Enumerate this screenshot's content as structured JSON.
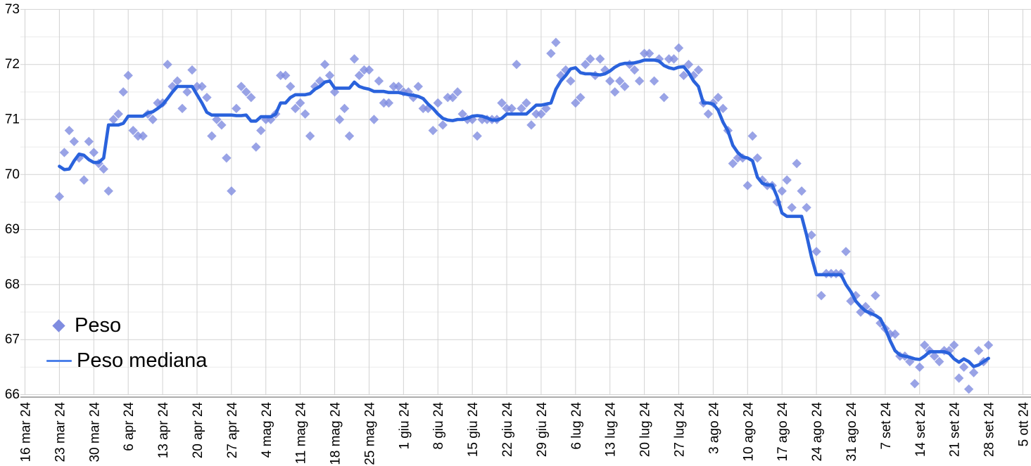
{
  "chart_data": {
    "type": "scatter",
    "title": "",
    "xlabel": "",
    "ylabel": "",
    "ylim": [
      66,
      73
    ],
    "y_ticks": [
      66,
      67,
      68,
      69,
      70,
      71,
      72,
      73
    ],
    "y_minor_tick_step": 0.5,
    "grid": true,
    "legend_position": "inside-bottom-left",
    "x_axis": {
      "start_date": "2024-03-16",
      "tick_interval_days": 7,
      "tick_labels": [
        "16 mar 24",
        "23 mar 24",
        "30 mar 24",
        "6 apr 24",
        "13 apr 24",
        "20 apr 24",
        "27 apr 24",
        "4 mag 24",
        "11 mag 24",
        "18 mag 24",
        "25 mag 24",
        "1 giu 24",
        "8 giu 24",
        "15 giu 24",
        "22 giu 24",
        "29 giu 24",
        "6 lug 24",
        "13 lug 24",
        "20 lug 24",
        "27 lug 24",
        "3 ago 24",
        "10 ago 24",
        "17 ago 24",
        "24 ago 24",
        "31 ago 24",
        "7 set 24",
        "14 set 24",
        "21 set 24",
        "28 set 24",
        "5 ott 24"
      ]
    },
    "series": [
      {
        "name": "Peso",
        "kind": "scatter",
        "marker": "diamond",
        "color": "#7F8CE0",
        "start_date": "2024-03-23",
        "frequency": "daily",
        "values": [
          69.6,
          70.4,
          70.8,
          70.6,
          70.3,
          69.9,
          70.6,
          70.4,
          70.2,
          70.1,
          69.7,
          71.0,
          71.1,
          71.5,
          71.8,
          70.8,
          70.7,
          70.7,
          71.1,
          71.0,
          71.3,
          71.3,
          72.0,
          71.6,
          71.7,
          71.2,
          71.5,
          71.9,
          71.6,
          71.6,
          71.4,
          70.7,
          71.0,
          70.9,
          70.3,
          69.7,
          71.2,
          71.6,
          71.5,
          71.4,
          70.5,
          70.8,
          71.0,
          71.0,
          71.1,
          71.8,
          71.8,
          71.6,
          71.2,
          71.3,
          71.1,
          70.7,
          71.6,
          71.7,
          72.0,
          71.8,
          71.5,
          71.0,
          71.2,
          70.7,
          72.1,
          71.8,
          71.9,
          71.9,
          71.0,
          71.7,
          71.3,
          71.3,
          71.6,
          71.6,
          71.5,
          71.5,
          71.4,
          71.6,
          71.2,
          71.2,
          70.8,
          71.3,
          70.9,
          71.4,
          71.4,
          71.5,
          71.1,
          71.0,
          71.0,
          70.7,
          71.0,
          71.0,
          71.0,
          71.0,
          71.3,
          71.2,
          71.2,
          72.0,
          71.2,
          71.3,
          70.9,
          71.1,
          71.1,
          71.2,
          72.2,
          72.4,
          71.8,
          71.9,
          71.7,
          71.3,
          71.4,
          72.0,
          72.1,
          71.8,
          72.1,
          71.9,
          71.7,
          71.5,
          71.7,
          71.6,
          72.0,
          71.9,
          71.7,
          72.2,
          72.2,
          71.7,
          72.1,
          71.4,
          72.1,
          72.1,
          72.3,
          71.8,
          72.0,
          71.8,
          71.9,
          71.3,
          71.1,
          71.3,
          71.4,
          71.2,
          70.8,
          70.2,
          70.3,
          70.3,
          69.8,
          70.7,
          70.3,
          69.9,
          69.8,
          69.8,
          69.5,
          69.7,
          69.9,
          69.4,
          70.2,
          69.7,
          69.4,
          68.9,
          68.6,
          67.8,
          68.2,
          68.2,
          68.2,
          68.2,
          68.6,
          67.7,
          67.8,
          67.5,
          67.6,
          67.5,
          67.8,
          67.3,
          67.2,
          67.1,
          67.1,
          66.7,
          66.7,
          66.6,
          66.2,
          66.5,
          66.9,
          66.8,
          66.7,
          66.6,
          66.8,
          66.8,
          66.9,
          66.3,
          66.5,
          66.1,
          66.4,
          66.8,
          66.6,
          66.9
        ]
      },
      {
        "name": "Peso mediana",
        "kind": "line",
        "color": "#2A62DC",
        "legend_swatch_color": "#4C80EA",
        "start_date": "2024-03-23",
        "frequency": "daily",
        "values": [
          70.15,
          70.09,
          70.1,
          70.25,
          70.37,
          70.35,
          70.27,
          70.22,
          70.22,
          70.3,
          70.9,
          70.9,
          70.9,
          70.93,
          71.06,
          71.06,
          71.06,
          71.06,
          71.12,
          71.14,
          71.2,
          71.27,
          71.38,
          71.5,
          71.6,
          71.6,
          71.6,
          71.6,
          71.45,
          71.3,
          71.13,
          71.08,
          71.08,
          71.08,
          71.08,
          71.08,
          71.07,
          71.07,
          71.08,
          70.97,
          70.97,
          71.05,
          71.05,
          71.05,
          71.1,
          71.3,
          71.3,
          71.4,
          71.45,
          71.45,
          71.45,
          71.47,
          71.55,
          71.6,
          71.68,
          71.7,
          71.57,
          71.57,
          71.57,
          71.57,
          71.68,
          71.6,
          71.57,
          71.55,
          71.51,
          71.51,
          71.51,
          71.49,
          71.49,
          71.49,
          71.47,
          71.45,
          71.44,
          71.42,
          71.38,
          71.28,
          71.2,
          71.1,
          71.02,
          70.99,
          70.98,
          71.0,
          71.0,
          71.02,
          71.06,
          71.07,
          71.06,
          71.03,
          70.99,
          70.99,
          71.02,
          71.1,
          71.1,
          71.1,
          71.1,
          71.1,
          71.18,
          71.26,
          71.26,
          71.28,
          71.3,
          71.55,
          71.7,
          71.8,
          71.92,
          71.94,
          71.85,
          71.83,
          71.83,
          71.82,
          71.81,
          71.83,
          71.88,
          71.95,
          72.0,
          72.02,
          72.02,
          72.03,
          72.05,
          72.08,
          72.08,
          72.08,
          72.06,
          71.98,
          71.94,
          71.92,
          71.95,
          71.96,
          71.85,
          71.7,
          71.6,
          71.3,
          71.3,
          71.28,
          71.17,
          70.95,
          70.79,
          70.53,
          70.4,
          70.32,
          70.3,
          70.25,
          69.95,
          69.84,
          69.81,
          69.81,
          69.6,
          69.3,
          69.24,
          69.24,
          69.24,
          69.24,
          68.9,
          68.5,
          68.18,
          68.18,
          68.18,
          68.18,
          68.18,
          68.18,
          68.0,
          67.87,
          67.7,
          67.6,
          67.52,
          67.48,
          67.44,
          67.38,
          67.2,
          66.98,
          66.8,
          66.72,
          66.7,
          66.68,
          66.65,
          66.64,
          66.7,
          66.78,
          66.78,
          66.78,
          66.78,
          66.75,
          66.65,
          66.59,
          66.65,
          66.6,
          66.51,
          66.54,
          66.6,
          66.66
        ]
      }
    ]
  },
  "legend": {
    "peso_label": "Peso",
    "mediana_label": "Peso mediana"
  },
  "colors": {
    "background": "#ffffff",
    "scatter_fill": "#7F8CE0",
    "line_stroke": "#2A62DC",
    "legend_line_swatch": "#4C80EA",
    "major_gridline": "#d2d2d2",
    "minor_gridline": "#ebebeb",
    "axis_line": "#7a7a7a",
    "tick_label": "#000000"
  }
}
